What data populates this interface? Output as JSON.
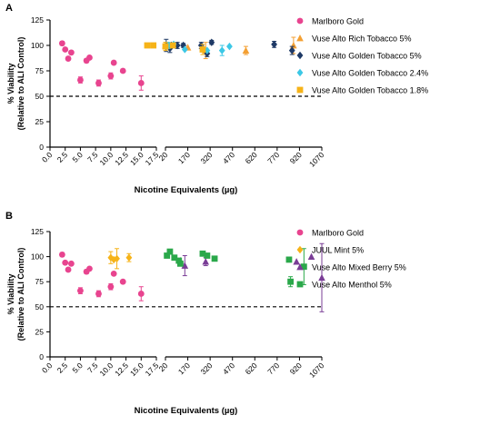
{
  "colors": {
    "marlboro": "#e8448f",
    "orange": "#f4a033",
    "navy": "#1f3a66",
    "cyan": "#3cc8e6",
    "gold": "#f6b318",
    "purple": "#7a3d96",
    "green": "#2aa84a",
    "axis": "#000000"
  },
  "chart_data": [
    {
      "panel_label": "A",
      "type": "scatter",
      "xlabel": "Nicotine Equivalents (µg)",
      "ylabel": [
        "% Viability",
        "(Relative to ALI Control)"
      ],
      "ylim": [
        0,
        125
      ],
      "y_ticks": [
        0,
        25,
        50,
        75,
        100,
        125
      ],
      "x_axis_broken": true,
      "x_left_ticks": [
        "0.0",
        "2.5",
        "5.0",
        "7.5",
        "10.0",
        "12.5",
        "15.0",
        "17.5"
      ],
      "x_right_ticks": [
        "20",
        "170",
        "320",
        "470",
        "620",
        "770",
        "920",
        "1070"
      ],
      "x_left_range": [
        0,
        17.5
      ],
      "x_right_range": [
        20,
        1070
      ],
      "reference_line": {
        "y": 50,
        "style": "dashed"
      },
      "legend_position": "right",
      "series": [
        {
          "name": "Marlboro Gold",
          "marker": "circle",
          "color_key": "marlboro",
          "points": [
            [
              2,
              102,
              2
            ],
            [
              2.5,
              96,
              0
            ],
            [
              3,
              87,
              0
            ],
            [
              3.5,
              93,
              0
            ],
            [
              5,
              66,
              3
            ],
            [
              6,
              85,
              2
            ],
            [
              6.5,
              88,
              0
            ],
            [
              8,
              63,
              3
            ],
            [
              10,
              70,
              3
            ],
            [
              10.5,
              83,
              0
            ],
            [
              12,
              75,
              0
            ],
            [
              15,
              63,
              7
            ]
          ]
        },
        {
          "name": "Vuse Alto Rich Tobacco 5%",
          "marker": "triangle",
          "color_key": "orange",
          "points": [
            [
              20,
              100,
              3
            ],
            [
              170,
              98,
              0
            ],
            [
              290,
              95,
              8
            ],
            [
              560,
              95,
              4
            ],
            [
              880,
              100,
              8
            ]
          ]
        },
        {
          "name": "Vuse Alto Golden Tobacco 5%",
          "marker": "diamond",
          "color_key": "navy",
          "points": [
            [
              25,
              100,
              6
            ],
            [
              50,
              97,
              4
            ],
            [
              60,
              100,
              2
            ],
            [
              100,
              100,
              3
            ],
            [
              140,
              100,
              2
            ],
            [
              260,
              100,
              3
            ],
            [
              300,
              92,
              3
            ],
            [
              330,
              103,
              2
            ],
            [
              750,
              101,
              3
            ],
            [
              870,
              95,
              4
            ]
          ]
        },
        {
          "name": "Vuse Alto Golden Tobacco 2.4%",
          "marker": "diamond",
          "color_key": "cyan",
          "points": [
            [
              40,
              100,
              3
            ],
            [
              75,
              101,
              0
            ],
            [
              150,
              96,
              0
            ],
            [
              300,
              95,
              0
            ],
            [
              400,
              95,
              5
            ],
            [
              450,
              99,
              0
            ]
          ]
        },
        {
          "name": "Vuse Alto Golden Tobacco 1.8%",
          "marker": "square",
          "color_key": "gold",
          "points": [
            [
              16,
              100,
              0
            ],
            [
              17,
              100,
              0
            ],
            [
              20,
              99,
              4
            ],
            [
              70,
              100,
              0
            ],
            [
              270,
              96,
              5
            ]
          ]
        }
      ]
    },
    {
      "panel_label": "B",
      "type": "scatter",
      "xlabel": "Nicotine Equivalents (µg)",
      "ylabel": [
        "% Viability",
        "(Relative to ALI Control)"
      ],
      "ylim": [
        0,
        125
      ],
      "y_ticks": [
        0,
        25,
        50,
        75,
        100,
        125
      ],
      "x_axis_broken": true,
      "x_left_ticks": [
        "0.0",
        "2.5",
        "5.0",
        "7.5",
        "10.0",
        "12.5",
        "15.0",
        "17.5"
      ],
      "x_right_ticks": [
        "20",
        "170",
        "320",
        "470",
        "620",
        "770",
        "920",
        "1070"
      ],
      "x_left_range": [
        0,
        17.5
      ],
      "x_right_range": [
        20,
        1070
      ],
      "reference_line": {
        "y": 50,
        "style": "dashed"
      },
      "legend_position": "right",
      "series": [
        {
          "name": "Marlboro Gold",
          "marker": "circle",
          "color_key": "marlboro",
          "points": [
            [
              2,
              102,
              2
            ],
            [
              2.5,
              94,
              0
            ],
            [
              3,
              87,
              0
            ],
            [
              3.5,
              93,
              0
            ],
            [
              5,
              66,
              3
            ],
            [
              6,
              85,
              2
            ],
            [
              6.5,
              88,
              0
            ],
            [
              8,
              63,
              3
            ],
            [
              10,
              70,
              3
            ],
            [
              10.5,
              83,
              0
            ],
            [
              12,
              75,
              0
            ],
            [
              15,
              63,
              7
            ]
          ]
        },
        {
          "name": "JUUL Mint 5%",
          "marker": "diamond",
          "color_key": "gold",
          "points": [
            [
              10,
              99,
              6
            ],
            [
              10.5,
              97,
              0
            ],
            [
              11,
              98,
              10
            ],
            [
              13,
              99,
              4
            ]
          ]
        },
        {
          "name": "Vuse Alto Mixed Berry 5%",
          "marker": "triangle",
          "color_key": "purple",
          "points": [
            [
              120,
              96,
              0
            ],
            [
              150,
              91,
              10
            ],
            [
              290,
              95,
              4
            ],
            [
              900,
              95,
              0
            ],
            [
              1000,
              100,
              0
            ],
            [
              1070,
              79,
              34
            ]
          ]
        },
        {
          "name": "Vuse Alto Menthol 5%",
          "marker": "square",
          "color_key": "green",
          "points": [
            [
              30,
              101,
              0
            ],
            [
              50,
              105,
              0
            ],
            [
              80,
              99,
              0
            ],
            [
              110,
              96,
              0
            ],
            [
              120,
              93,
              0
            ],
            [
              270,
              103,
              0
            ],
            [
              300,
              101,
              0
            ],
            [
              350,
              98,
              0
            ],
            [
              850,
              97,
              2
            ],
            [
              860,
              75,
              5
            ],
            [
              950,
              90,
              18
            ]
          ]
        }
      ]
    }
  ]
}
